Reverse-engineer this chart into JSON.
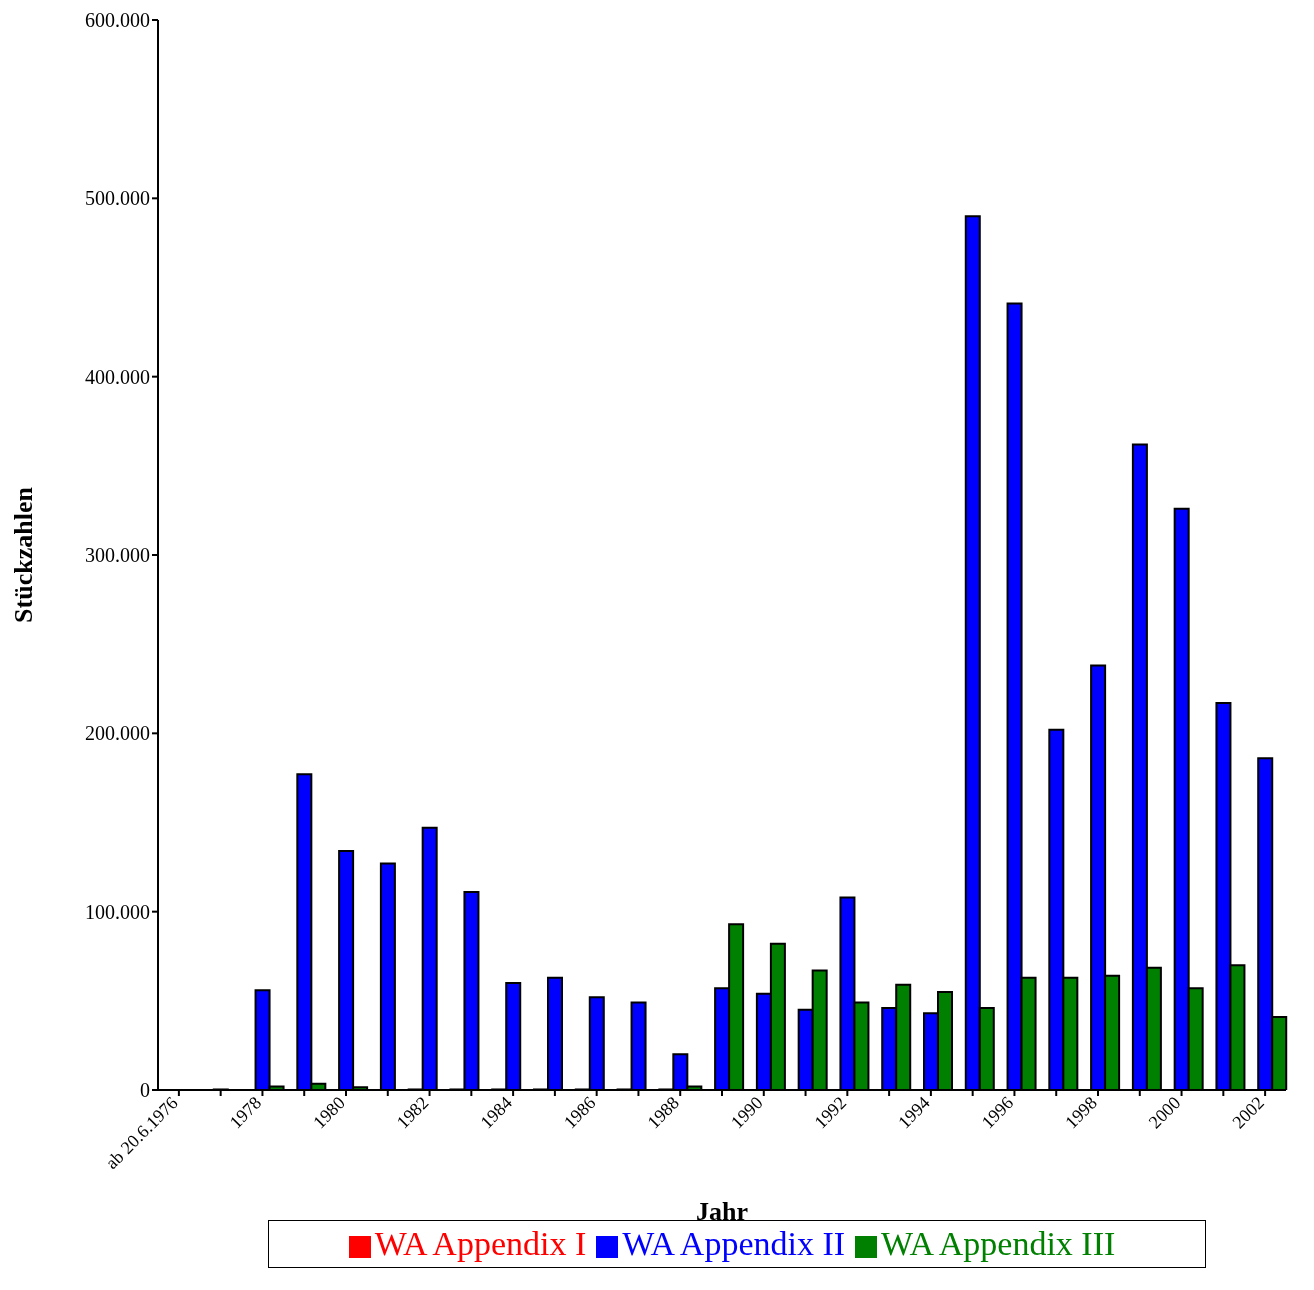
{
  "chart_data": {
    "type": "bar",
    "xlabel": "Jahr",
    "ylabel": "Stückzahlen",
    "categories": [
      "ab 20.6.1976",
      null,
      "1978",
      null,
      "1980",
      null,
      "1982",
      null,
      "1984",
      null,
      "1986",
      null,
      "1988",
      null,
      "1990",
      null,
      "1992",
      null,
      "1994",
      null,
      "1996",
      null,
      "1998",
      null,
      "2000",
      null,
      "2002"
    ],
    "series": [
      {
        "name": "WA Appendix I",
        "color": "#ff0000",
        "values": [
          0,
          0,
          0,
          0,
          0,
          0,
          300,
          300,
          300,
          300,
          300,
          300,
          300,
          0,
          0,
          0,
          0,
          0,
          0,
          0,
          0,
          0,
          0,
          0,
          0,
          0,
          0
        ]
      },
      {
        "name": "WA Appendix II",
        "color": "#0000ff",
        "values": [
          0,
          300,
          56000,
          177000,
          134000,
          127000,
          147000,
          111000,
          60000,
          63000,
          52000,
          49000,
          20000,
          57000,
          54000,
          45000,
          108000,
          46000,
          43000,
          490000,
          441000,
          202000,
          238000,
          362000,
          326000,
          217000,
          186000
        ]
      },
      {
        "name": "WA Appendix III",
        "color": "#008000",
        "values": [
          0,
          0,
          2000,
          3500,
          1500,
          0,
          0,
          0,
          0,
          0,
          0,
          0,
          2000,
          93000,
          82000,
          67000,
          49000,
          59000,
          55000,
          46000,
          63000,
          63000,
          64000,
          68500,
          57000,
          70000,
          41000
        ]
      }
    ],
    "ylim": [
      0,
      600000
    ],
    "yticks": [
      {
        "value": 0,
        "label": "0"
      },
      {
        "value": 100000,
        "label": "100.000"
      },
      {
        "value": 200000,
        "label": "200.000"
      },
      {
        "value": 300000,
        "label": "300.000"
      },
      {
        "value": 400000,
        "label": "400.000"
      },
      {
        "value": 500000,
        "label": "500.000"
      },
      {
        "value": 600000,
        "label": "600.000"
      }
    ],
    "grid": false,
    "legend": "bottom"
  }
}
